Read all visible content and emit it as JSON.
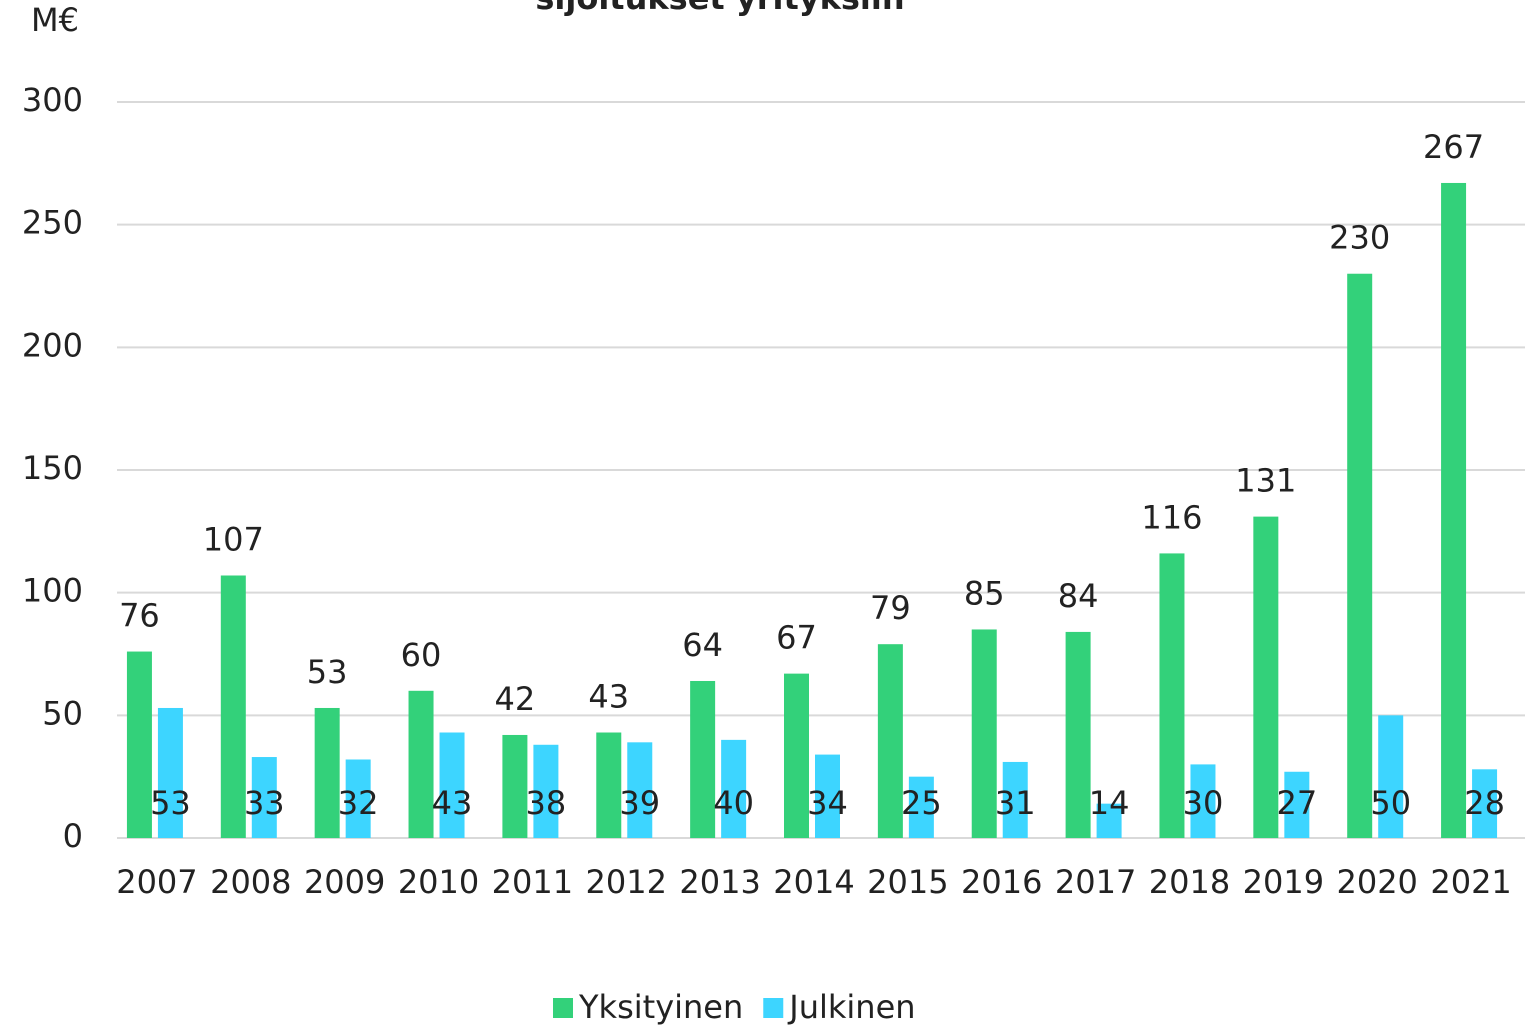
{
  "chart_data": {
    "type": "bar",
    "title": "sijoitukset yrityksiin",
    "y_label": "M€",
    "categories": [
      "2007",
      "2008",
      "2009",
      "2010",
      "2011",
      "2012",
      "2013",
      "2014",
      "2015",
      "2016",
      "2017",
      "2018",
      "2019",
      "2020",
      "2021"
    ],
    "series": [
      {
        "name": "Yksityinen",
        "color": "#33d17a",
        "values": [
          76,
          107,
          53,
          60,
          42,
          43,
          64,
          67,
          79,
          85,
          84,
          116,
          131,
          230,
          267
        ]
      },
      {
        "name": "Julkinen",
        "color": "#3dd5ff",
        "values": [
          53,
          33,
          32,
          43,
          38,
          39,
          40,
          34,
          25,
          31,
          14,
          30,
          27,
          50,
          28
        ]
      }
    ],
    "ylim": [
      0,
      300
    ],
    "yticks": [
      0,
      50,
      100,
      150,
      200,
      250,
      300
    ],
    "grid": true,
    "legend": "bottom"
  }
}
